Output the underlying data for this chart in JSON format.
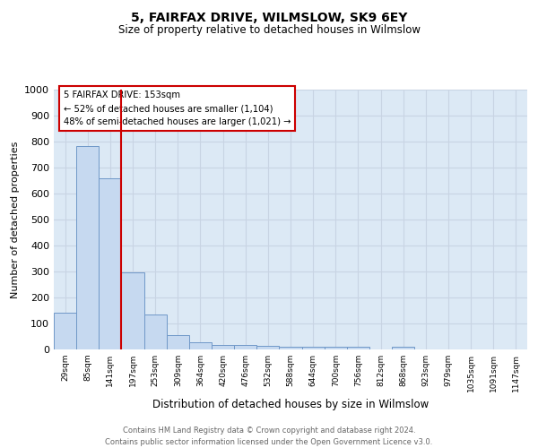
{
  "title": "5, FAIRFAX DRIVE, WILMSLOW, SK9 6EY",
  "subtitle": "Size of property relative to detached houses in Wilmslow",
  "xlabel": "Distribution of detached houses by size in Wilmslow",
  "ylabel": "Number of detached properties",
  "bar_labels": [
    "29sqm",
    "85sqm",
    "141sqm",
    "197sqm",
    "253sqm",
    "309sqm",
    "364sqm",
    "420sqm",
    "476sqm",
    "532sqm",
    "588sqm",
    "644sqm",
    "700sqm",
    "756sqm",
    "812sqm",
    "868sqm",
    "923sqm",
    "979sqm",
    "1035sqm",
    "1091sqm",
    "1147sqm"
  ],
  "bar_heights": [
    141,
    784,
    658,
    295,
    136,
    55,
    29,
    18,
    18,
    14,
    10,
    10,
    10,
    9,
    0,
    9,
    0,
    0,
    0,
    0,
    0
  ],
  "bar_color": "#c6d9f0",
  "bar_edge_color": "#7098c8",
  "red_line_x": 2.5,
  "annotation_text": "5 FAIRFAX DRIVE: 153sqm\n← 52% of detached houses are smaller (1,104)\n48% of semi-detached houses are larger (1,021) →",
  "annotation_box_color": "#ffffff",
  "annotation_box_edge": "#cc0000",
  "ylim": [
    0,
    1000
  ],
  "yticks": [
    0,
    100,
    200,
    300,
    400,
    500,
    600,
    700,
    800,
    900,
    1000
  ],
  "footer1": "Contains HM Land Registry data © Crown copyright and database right 2024.",
  "footer2": "Contains public sector information licensed under the Open Government Licence v3.0.",
  "red_line_color": "#cc0000",
  "grid_color": "#c8d4e3",
  "bg_color": "#dce9f5",
  "title_fontsize": 10,
  "subtitle_fontsize": 8.5
}
